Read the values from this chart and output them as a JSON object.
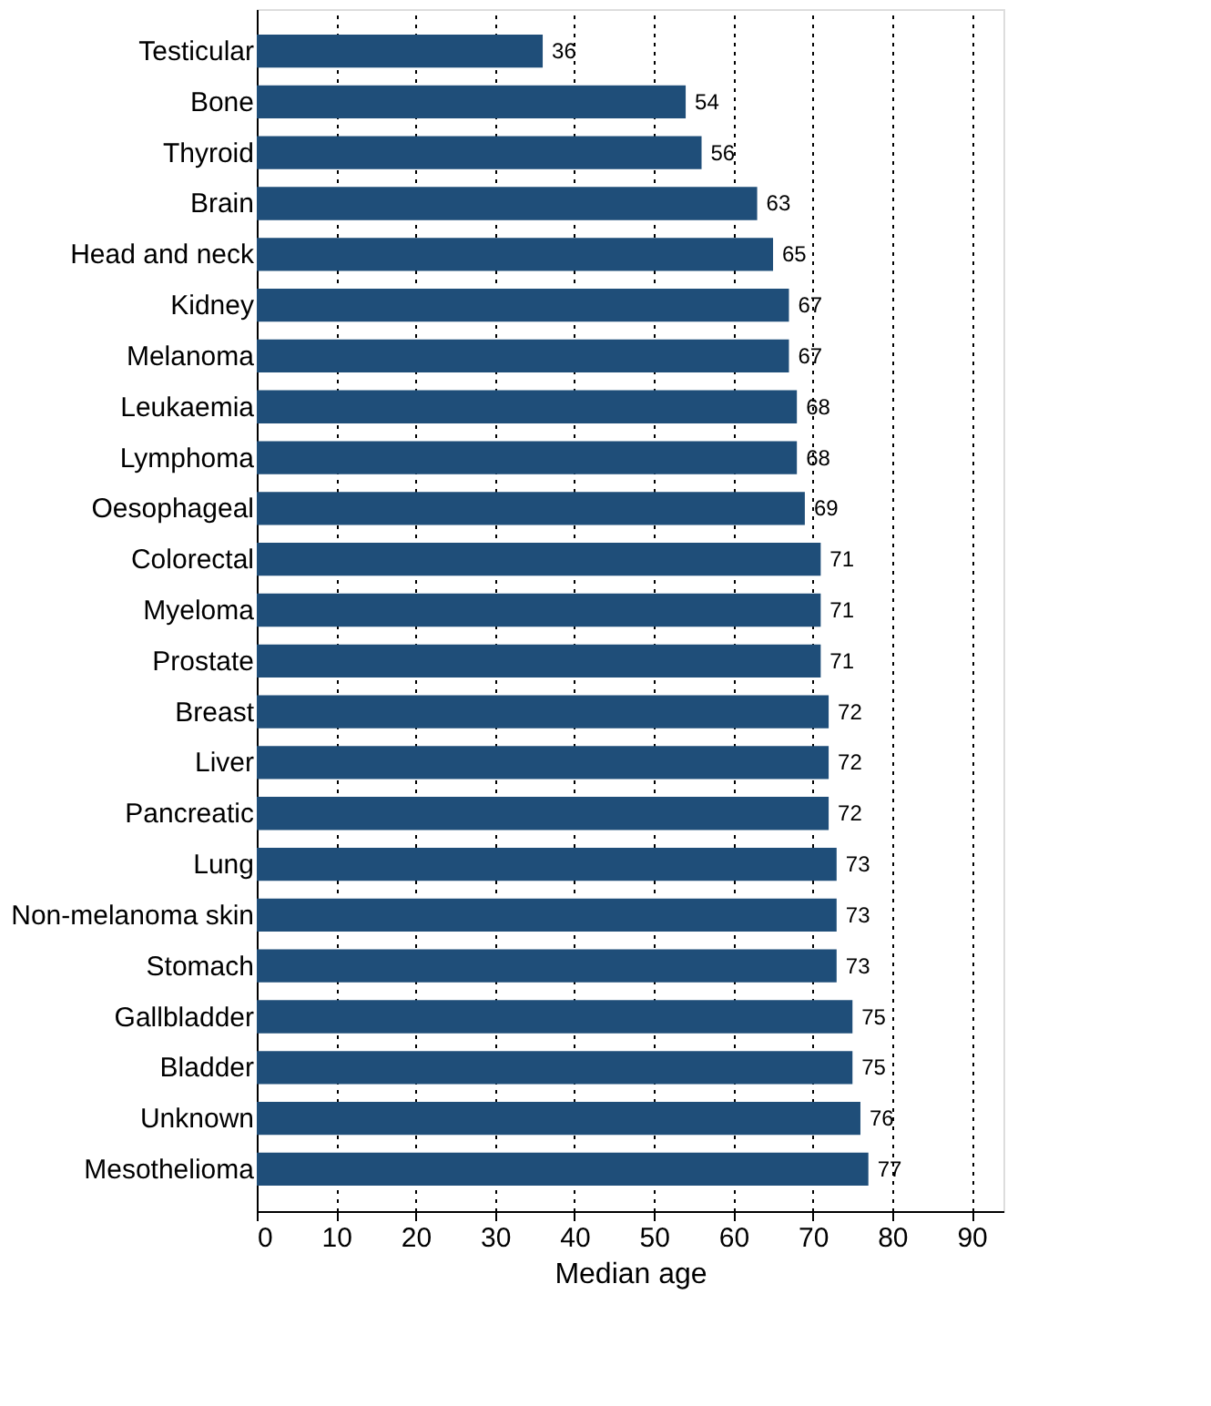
{
  "chart_data": {
    "type": "bar",
    "orientation": "horizontal",
    "xlabel": "Median age",
    "categories": [
      "Testicular",
      "Bone",
      "Thyroid",
      "Brain",
      "Head and neck",
      "Kidney",
      "Melanoma",
      "Leukaemia",
      "Lymphoma",
      "Oesophageal",
      "Colorectal",
      "Myeloma",
      "Prostate",
      "Breast",
      "Liver",
      "Pancreatic",
      "Lung",
      "Non-melanoma skin",
      "Stomach",
      "Gallbladder",
      "Bladder",
      "Unknown",
      "Mesothelioma"
    ],
    "values": [
      36,
      54,
      56,
      63,
      65,
      67,
      67,
      68,
      68,
      69,
      71,
      71,
      71,
      72,
      72,
      72,
      73,
      73,
      73,
      75,
      75,
      76,
      77
    ],
    "color": "#1f4e79",
    "xlim": [
      0,
      94
    ],
    "xticks": [
      0,
      10,
      20,
      30,
      40,
      50,
      60,
      70,
      80,
      90
    ],
    "grid": "x",
    "data_labels": true
  }
}
